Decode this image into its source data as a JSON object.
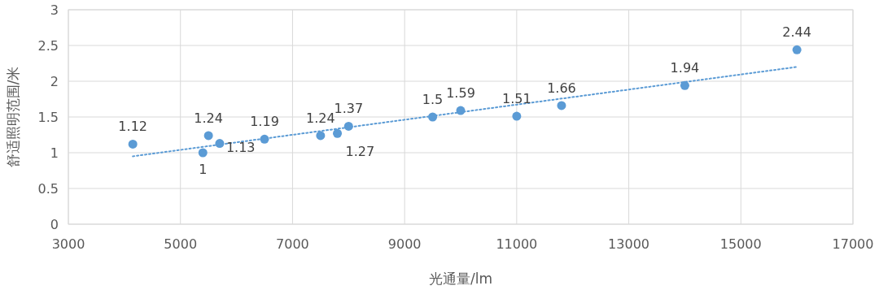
{
  "chart_data": {
    "type": "scatter",
    "xlabel": "光通量/lm",
    "ylabel": "舒适照明范围/米",
    "xlim": [
      3000,
      17000
    ],
    "xticks": [
      3000,
      5000,
      7000,
      9000,
      11000,
      13000,
      15000,
      17000
    ],
    "ylim": [
      0,
      3
    ],
    "yticks": [
      0,
      0.5,
      1,
      1.5,
      2,
      2.5,
      3
    ],
    "grid": true,
    "series": [
      {
        "marker": "circle",
        "color": "#5b9bd5",
        "value_labels": [
          "1.12",
          "1",
          "1.24",
          "1.13",
          "1.19",
          "1.24",
          "1.27",
          "1.37",
          "1.5",
          "1.59",
          "1.51",
          "1.66",
          "1.94",
          "2.44"
        ],
        "x": [
          4150,
          5400,
          5500,
          5700,
          6500,
          7500,
          7800,
          8000,
          9500,
          10000,
          11000,
          11800,
          14000,
          16000
        ],
        "values": [
          1.12,
          1,
          1.24,
          1.13,
          1.19,
          1.24,
          1.27,
          1.37,
          1.5,
          1.59,
          1.51,
          1.66,
          1.94,
          2.44
        ]
      },
      {
        "type": "line",
        "color": "#5b9bd5",
        "line_style": "dotted",
        "x": [
          4150,
          16000
        ],
        "values": [
          0.95,
          2.2
        ]
      }
    ]
  }
}
